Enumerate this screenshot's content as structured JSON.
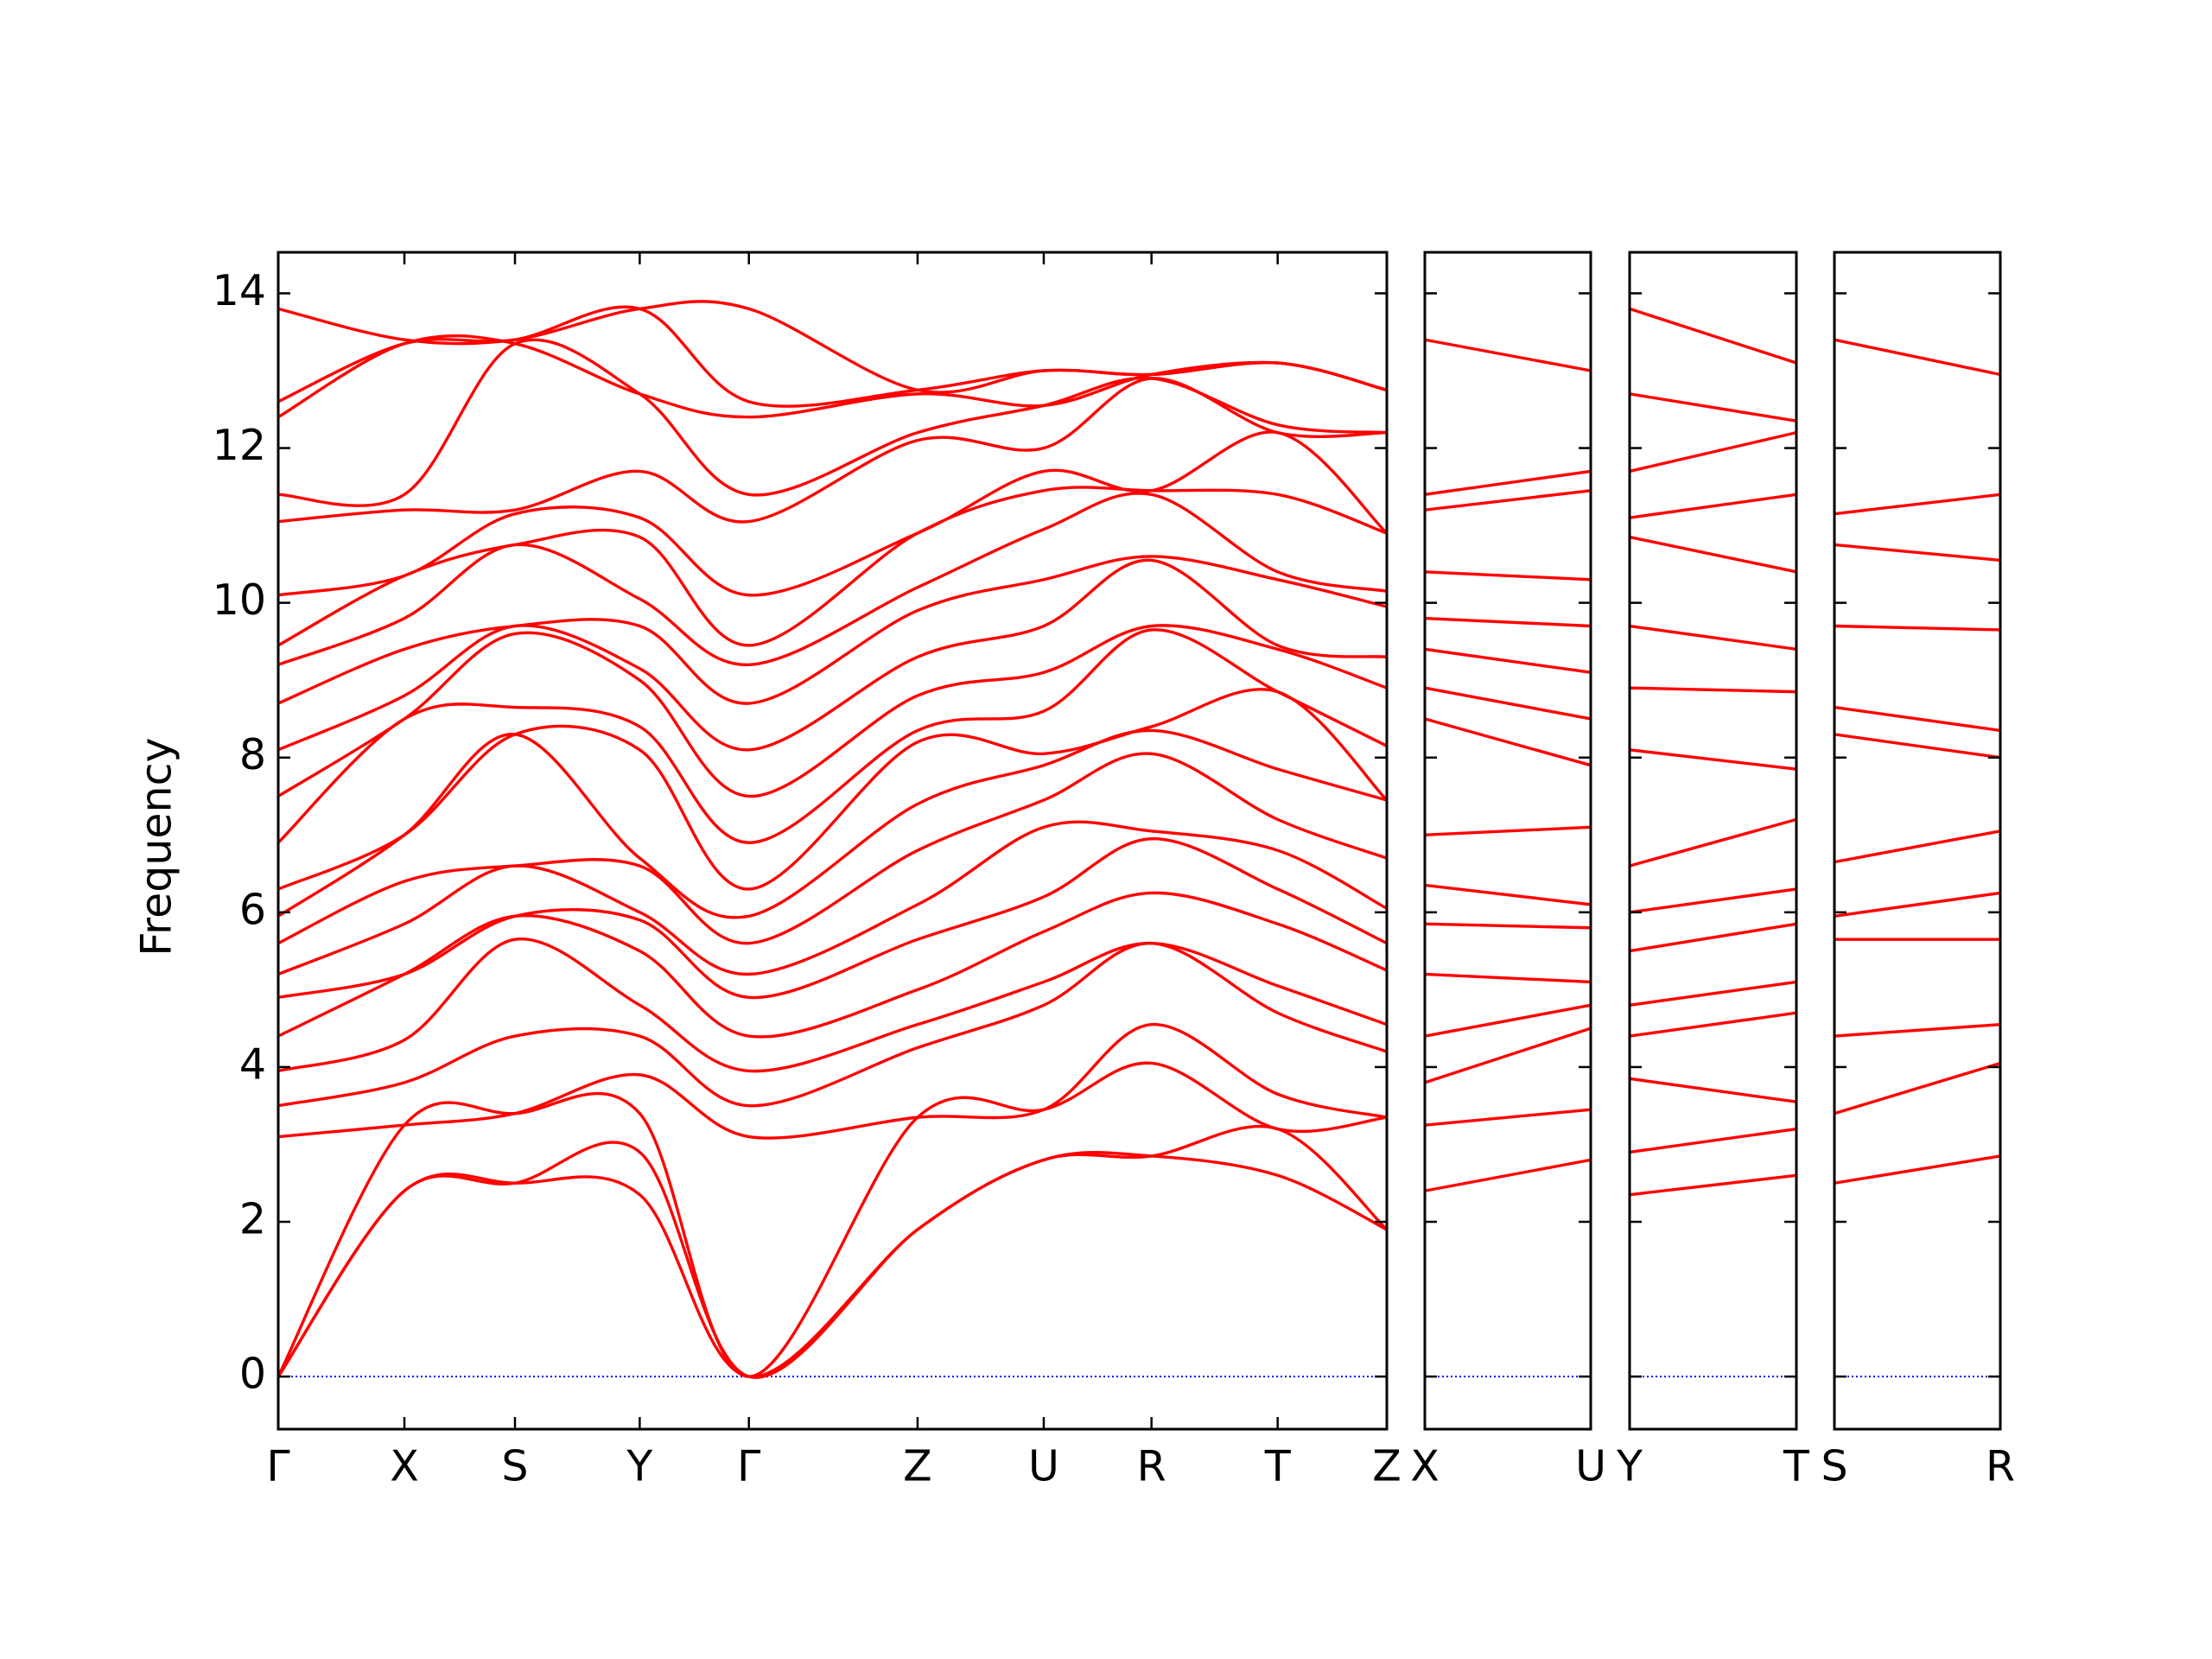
{
  "chart_data": [
    {
      "type": "line",
      "ylabel": "Frequency",
      "ylim": [
        -0.68,
        14.53
      ],
      "yticks": [
        0,
        2,
        4,
        6,
        8,
        10,
        12,
        14
      ],
      "zero_line_color": "#0000ff",
      "xlim": [
        0,
        7.82
      ],
      "x": [
        0,
        0.89,
        1.67,
        2.55,
        3.32,
        4.51,
        5.4,
        6.16,
        7.05,
        7.82
      ],
      "xticks": [
        {
          "value": 0,
          "label": "Γ"
        },
        {
          "value": 0.89,
          "label": "X"
        },
        {
          "value": 1.67,
          "label": "S"
        },
        {
          "value": 2.55,
          "label": "Y"
        },
        {
          "value": 3.32,
          "label": "Γ"
        },
        {
          "value": 4.51,
          "label": "Z"
        },
        {
          "value": 5.4,
          "label": "U"
        },
        {
          "value": 6.16,
          "label": "R"
        },
        {
          "value": 7.05,
          "label": "T"
        },
        {
          "value": 7.82,
          "label": "Z"
        }
      ],
      "series": [
        {
          "color": "#ff0000",
          "values": [
            0,
            2.4,
            2.5,
            2.35,
            0,
            1.9,
            2.8,
            2.85,
            2.6,
            1.9
          ]
        },
        {
          "color": "#ff0000",
          "values": [
            0,
            2.4,
            2.5,
            2.9,
            0,
            1.9,
            2.8,
            2.85,
            3.2,
            1.9
          ]
        },
        {
          "color": "#ff0000",
          "values": [
            0,
            3.25,
            3.4,
            3.4,
            0,
            3.35,
            3.45,
            4.05,
            3.2,
            3.35
          ]
        },
        {
          "color": "#ff0000",
          "values": [
            3.1,
            3.25,
            3.4,
            3.9,
            3.1,
            3.35,
            3.45,
            4.55,
            3.65,
            3.35
          ]
        },
        {
          "color": "#ff0000",
          "values": [
            3.5,
            3.8,
            4.4,
            4.4,
            3.5,
            4.25,
            4.8,
            5.6,
            4.7,
            4.2
          ]
        },
        {
          "color": "#ff0000",
          "values": [
            3.95,
            4.35,
            5.65,
            4.8,
            3.95,
            4.55,
            5.1,
            5.6,
            5.05,
            4.55
          ]
        },
        {
          "color": "#ff0000",
          "values": [
            4.4,
            5.2,
            5.95,
            5.5,
            4.4,
            5.0,
            5.75,
            6.25,
            5.85,
            5.25
          ]
        },
        {
          "color": "#ff0000",
          "values": [
            4.9,
            5.2,
            5.95,
            5.9,
            4.9,
            5.65,
            6.2,
            6.95,
            6.3,
            5.6
          ]
        },
        {
          "color": "#ff0000",
          "values": [
            5.2,
            5.85,
            6.6,
            6.0,
            5.2,
            6.1,
            7.1,
            7.05,
            6.8,
            6.05
          ]
        },
        {
          "color": "#ff0000",
          "values": [
            5.6,
            6.4,
            6.6,
            6.6,
            5.6,
            6.8,
            7.45,
            8.05,
            7.2,
            6.7
          ]
        },
        {
          "color": "#ff0000",
          "values": [
            5.95,
            7.0,
            8.3,
            6.7,
            5.95,
            7.4,
            7.9,
            8.35,
            7.85,
            7.45
          ]
        },
        {
          "color": "#ff0000",
          "values": [
            6.3,
            7.0,
            8.3,
            8.1,
            6.3,
            8.2,
            8.05,
            8.4,
            8.85,
            7.45
          ]
        },
        {
          "color": "#ff0000",
          "values": [
            6.9,
            8.5,
            8.65,
            8.4,
            6.9,
            8.35,
            8.6,
            9.65,
            8.85,
            8.15
          ]
        },
        {
          "color": "#ff0000",
          "values": [
            7.5,
            8.5,
            9.6,
            9.0,
            7.5,
            8.8,
            9.1,
            9.7,
            9.4,
            8.9
          ]
        },
        {
          "color": "#ff0000",
          "values": [
            8.1,
            8.8,
            9.7,
            9.15,
            8.1,
            9.3,
            9.7,
            10.55,
            9.45,
            9.3
          ]
        },
        {
          "color": "#ff0000",
          "values": [
            8.7,
            9.4,
            9.7,
            9.7,
            8.7,
            9.9,
            10.3,
            10.6,
            10.3,
            9.95
          ]
        },
        {
          "color": "#ff0000",
          "values": [
            9.2,
            9.8,
            10.75,
            10.05,
            9.2,
            10.2,
            10.95,
            11.4,
            10.4,
            10.15
          ]
        },
        {
          "color": "#ff0000",
          "values": [
            9.45,
            10.35,
            10.75,
            10.85,
            9.45,
            10.9,
            11.45,
            11.45,
            11.4,
            10.9
          ]
        },
        {
          "color": "#ff0000",
          "values": [
            10.1,
            10.35,
            11.15,
            11.1,
            10.1,
            10.9,
            11.7,
            11.45,
            12.2,
            10.9
          ]
        },
        {
          "color": "#ff0000",
          "values": [
            11.05,
            11.2,
            11.2,
            11.7,
            11.05,
            12.1,
            12.0,
            12.9,
            12.2,
            12.2
          ]
        },
        {
          "color": "#ff0000",
          "values": [
            11.4,
            11.4,
            13.35,
            12.7,
            11.4,
            12.2,
            12.55,
            12.9,
            12.3,
            12.2
          ]
        },
        {
          "color": "#ff0000",
          "values": [
            12.4,
            13.35,
            13.35,
            12.7,
            12.4,
            12.7,
            12.55,
            12.95,
            13.1,
            12.75
          ]
        },
        {
          "color": "#ff0000",
          "values": [
            12.6,
            13.35,
            13.4,
            13.8,
            12.6,
            12.75,
            13.0,
            12.95,
            13.1,
            12.75
          ]
        },
        {
          "color": "#ff0000",
          "values": [
            13.8,
            13.4,
            13.4,
            13.8,
            13.8,
            12.75,
            13.0,
            12.95,
            13.1,
            12.75
          ]
        }
      ]
    },
    {
      "type": "line",
      "xlim": [
        0,
        1.17
      ],
      "x": [
        0,
        1.17
      ],
      "xticks": [
        {
          "value": 0,
          "label": "X"
        },
        {
          "value": 1.17,
          "label": "U"
        }
      ],
      "series": [
        {
          "color": "#ff0000",
          "values": [
            2.4,
            2.8
          ]
        },
        {
          "color": "#ff0000",
          "values": [
            3.25,
            3.45
          ]
        },
        {
          "color": "#ff0000",
          "values": [
            3.8,
            4.5
          ]
        },
        {
          "color": "#ff0000",
          "values": [
            4.4,
            4.8
          ]
        },
        {
          "color": "#ff0000",
          "values": [
            5.2,
            5.1
          ]
        },
        {
          "color": "#ff0000",
          "values": [
            5.85,
            5.8
          ]
        },
        {
          "color": "#ff0000",
          "values": [
            6.35,
            6.1
          ]
        },
        {
          "color": "#ff0000",
          "values": [
            7.0,
            7.1
          ]
        },
        {
          "color": "#ff0000",
          "values": [
            8.5,
            7.9
          ]
        },
        {
          "color": "#ff0000",
          "values": [
            8.9,
            8.5
          ]
        },
        {
          "color": "#ff0000",
          "values": [
            9.4,
            9.1
          ]
        },
        {
          "color": "#ff0000",
          "values": [
            9.8,
            9.7
          ]
        },
        {
          "color": "#ff0000",
          "values": [
            10.4,
            10.3
          ]
        },
        {
          "color": "#ff0000",
          "values": [
            11.2,
            11.45
          ]
        },
        {
          "color": "#ff0000",
          "values": [
            11.4,
            11.7
          ]
        },
        {
          "color": "#ff0000",
          "values": [
            13.4,
            13.0
          ]
        }
      ]
    },
    {
      "type": "line",
      "xlim": [
        0,
        1.18
      ],
      "x": [
        0,
        1.18
      ],
      "xticks": [
        {
          "value": 0,
          "label": "Y"
        },
        {
          "value": 1.18,
          "label": "T"
        }
      ],
      "series": [
        {
          "color": "#ff0000",
          "values": [
            2.35,
            2.6
          ]
        },
        {
          "color": "#ff0000",
          "values": [
            2.9,
            3.2
          ]
        },
        {
          "color": "#ff0000",
          "values": [
            3.85,
            3.55
          ]
        },
        {
          "color": "#ff0000",
          "values": [
            4.4,
            4.7
          ]
        },
        {
          "color": "#ff0000",
          "values": [
            4.8,
            5.1
          ]
        },
        {
          "color": "#ff0000",
          "values": [
            5.5,
            5.85
          ]
        },
        {
          "color": "#ff0000",
          "values": [
            6.0,
            6.3
          ]
        },
        {
          "color": "#ff0000",
          "values": [
            6.6,
            7.2
          ]
        },
        {
          "color": "#ff0000",
          "values": [
            8.1,
            7.85
          ]
        },
        {
          "color": "#ff0000",
          "values": [
            8.9,
            8.85
          ]
        },
        {
          "color": "#ff0000",
          "values": [
            9.7,
            9.4
          ]
        },
        {
          "color": "#ff0000",
          "values": [
            10.85,
            10.4
          ]
        },
        {
          "color": "#ff0000",
          "values": [
            11.1,
            11.4
          ]
        },
        {
          "color": "#ff0000",
          "values": [
            11.7,
            12.2
          ]
        },
        {
          "color": "#ff0000",
          "values": [
            12.7,
            12.35
          ]
        },
        {
          "color": "#ff0000",
          "values": [
            13.8,
            13.1
          ]
        }
      ]
    },
    {
      "type": "line",
      "xlim": [
        0,
        1.17
      ],
      "x": [
        0,
        1.17
      ],
      "xticks": [
        {
          "value": 0,
          "label": "S"
        },
        {
          "value": 1.17,
          "label": "R"
        }
      ],
      "series": [
        {
          "color": "#ff0000",
          "values": [
            2.5,
            2.85
          ]
        },
        {
          "color": "#ff0000",
          "values": [
            3.4,
            4.05
          ]
        },
        {
          "color": "#ff0000",
          "values": [
            4.4,
            4.55
          ]
        },
        {
          "color": "#ff0000",
          "values": [
            5.65,
            5.65
          ]
        },
        {
          "color": "#ff0000",
          "values": [
            5.95,
            6.25
          ]
        },
        {
          "color": "#ff0000",
          "values": [
            6.65,
            7.05
          ]
        },
        {
          "color": "#ff0000",
          "values": [
            8.3,
            8.0
          ]
        },
        {
          "color": "#ff0000",
          "values": [
            8.65,
            8.35
          ]
        },
        {
          "color": "#ff0000",
          "values": [
            9.7,
            9.65
          ]
        },
        {
          "color": "#ff0000",
          "values": [
            10.75,
            10.55
          ]
        },
        {
          "color": "#ff0000",
          "values": [
            11.15,
            11.4
          ]
        },
        {
          "color": "#ff0000",
          "values": [
            13.4,
            12.95
          ]
        }
      ]
    }
  ]
}
